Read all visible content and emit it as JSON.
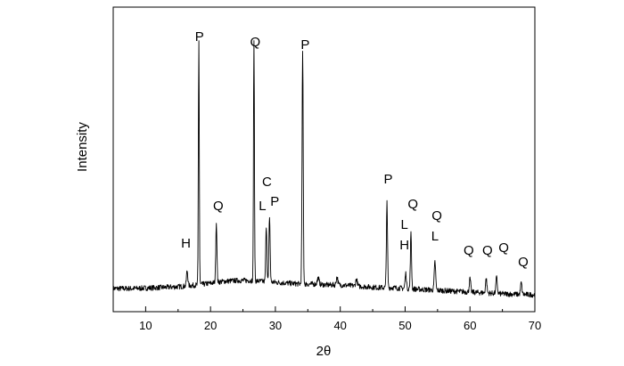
{
  "chart_data": {
    "type": "line",
    "title": "",
    "xlabel": "2θ",
    "ylabel": "Intensity",
    "xlim": [
      5,
      70
    ],
    "xticks": [
      10,
      20,
      30,
      40,
      50,
      60,
      70
    ],
    "y_tick_labels": false,
    "grid": false,
    "legend": "none",
    "line_color": "#000000",
    "series": [
      {
        "baseline": [
          [
            5,
            12
          ],
          [
            8,
            12
          ],
          [
            12,
            13
          ],
          [
            15,
            14
          ],
          [
            18,
            16
          ],
          [
            20,
            18
          ],
          [
            22,
            20
          ],
          [
            24,
            21
          ],
          [
            26,
            21
          ],
          [
            28,
            20
          ],
          [
            30,
            19
          ],
          [
            32,
            18
          ],
          [
            34,
            17
          ],
          [
            36,
            17
          ],
          [
            38,
            16
          ],
          [
            40,
            16
          ],
          [
            42,
            15
          ],
          [
            44,
            14
          ],
          [
            46,
            13
          ],
          [
            48,
            13
          ],
          [
            50,
            12
          ],
          [
            55,
            10
          ],
          [
            60,
            8
          ],
          [
            65,
            6
          ],
          [
            70,
            5
          ]
        ],
        "peaks": [
          {
            "x": 16.4,
            "height": 17,
            "width": 0.3
          },
          {
            "x": 18.2,
            "height": 275,
            "width": 0.2
          },
          {
            "x": 20.9,
            "height": 67,
            "width": 0.25
          },
          {
            "x": 26.7,
            "height": 268,
            "width": 0.2
          },
          {
            "x": 28.6,
            "height": 63,
            "width": 0.25
          },
          {
            "x": 29.1,
            "height": 74,
            "width": 0.25
          },
          {
            "x": 34.2,
            "height": 260,
            "width": 0.25
          },
          {
            "x": 36.6,
            "height": 7,
            "width": 0.4
          },
          {
            "x": 39.5,
            "height": 9,
            "width": 0.35
          },
          {
            "x": 42.5,
            "height": 8,
            "width": 0.35
          },
          {
            "x": 47.2,
            "height": 95,
            "width": 0.25
          },
          {
            "x": 50.1,
            "height": 17,
            "width": 0.3
          },
          {
            "x": 50.9,
            "height": 62,
            "width": 0.25
          },
          {
            "x": 54.6,
            "height": 32,
            "width": 0.3
          },
          {
            "x": 60.0,
            "height": 15,
            "width": 0.3
          },
          {
            "x": 62.5,
            "height": 16,
            "width": 0.3
          },
          {
            "x": 64.1,
            "height": 18,
            "width": 0.3
          },
          {
            "x": 67.9,
            "height": 13,
            "width": 0.3
          }
        ]
      }
    ],
    "annotations": [
      {
        "text": "H",
        "x": 16.2,
        "y": 58
      },
      {
        "text": "P",
        "x": 18.3,
        "y": 290
      },
      {
        "text": "Q",
        "x": 21.2,
        "y": 100
      },
      {
        "text": "Q",
        "x": 26.9,
        "y": 284
      },
      {
        "text": "C",
        "x": 28.7,
        "y": 127
      },
      {
        "text": "L",
        "x": 28.0,
        "y": 100
      },
      {
        "text": "P",
        "x": 29.9,
        "y": 105
      },
      {
        "text": "P",
        "x": 34.6,
        "y": 281
      },
      {
        "text": "P",
        "x": 47.4,
        "y": 130
      },
      {
        "text": "Q",
        "x": 51.2,
        "y": 102
      },
      {
        "text": "L",
        "x": 49.9,
        "y": 79
      },
      {
        "text": "H",
        "x": 49.9,
        "y": 56
      },
      {
        "text": "Q",
        "x": 54.9,
        "y": 89
      },
      {
        "text": "L",
        "x": 54.6,
        "y": 66
      },
      {
        "text": "Q",
        "x": 59.8,
        "y": 50
      },
      {
        "text": "Q",
        "x": 62.7,
        "y": 50
      },
      {
        "text": "Q",
        "x": 65.2,
        "y": 53
      },
      {
        "text": "Q",
        "x": 68.2,
        "y": 37
      }
    ]
  }
}
